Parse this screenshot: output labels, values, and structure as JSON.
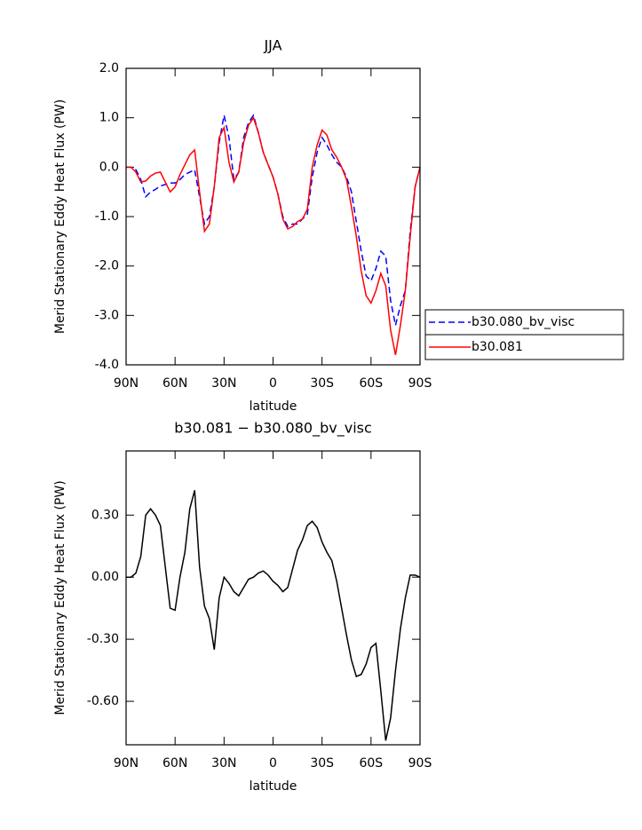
{
  "chart_data": [
    {
      "type": "line",
      "title": "JJA",
      "x_label": "latitude",
      "y_label": "Merid Stationary Eddy Heat Flux (PW)",
      "x": [
        90,
        87,
        84,
        81,
        78,
        75,
        72,
        69,
        66,
        63,
        60,
        57,
        54,
        51,
        48,
        45,
        42,
        39,
        36,
        33,
        30,
        27,
        24,
        21,
        18,
        15,
        12,
        9,
        6,
        3,
        0,
        -3,
        -6,
        -9,
        -12,
        -15,
        -18,
        -21,
        -24,
        -27,
        -30,
        -33,
        -36,
        -39,
        -42,
        -45,
        -48,
        -51,
        -54,
        -57,
        -60,
        -63,
        -66,
        -69,
        -72,
        -75,
        -78,
        -81,
        -84,
        -87,
        -90
      ],
      "series": [
        {
          "name": "b30.080_bv_visc",
          "color": "#0000ff",
          "line_style": "dashed",
          "values": [
            0,
            0,
            -0.05,
            -0.25,
            -0.6,
            -0.5,
            -0.45,
            -0.38,
            -0.35,
            -0.32,
            -0.32,
            -0.25,
            -0.15,
            -0.1,
            -0.05,
            -0.6,
            -1.15,
            -1.0,
            -0.4,
            0.5,
            1.05,
            0.6,
            -0.25,
            -0.1,
            0.6,
            0.9,
            1.05,
            0.7,
            0.3,
            0.05,
            -0.2,
            -0.55,
            -1.0,
            -1.2,
            -1.15,
            -1.15,
            -1.05,
            -0.95,
            -0.2,
            0.3,
            0.6,
            0.45,
            0.25,
            0.1,
            0.0,
            -0.2,
            -0.5,
            -1.1,
            -1.7,
            -2.2,
            -2.3,
            -2.05,
            -1.7,
            -1.8,
            -2.7,
            -3.2,
            -2.8,
            -2.5,
            -1.3,
            -0.4,
            0
          ]
        },
        {
          "name": "b30.081",
          "color": "#ff0000",
          "line_style": "solid",
          "values": [
            0,
            0,
            -0.1,
            -0.3,
            -0.28,
            -0.18,
            -0.12,
            -0.1,
            -0.3,
            -0.5,
            -0.4,
            -0.15,
            0.05,
            0.25,
            0.35,
            -0.5,
            -1.3,
            -1.15,
            -0.4,
            0.6,
            0.8,
            0.1,
            -0.3,
            -0.1,
            0.5,
            0.85,
            1.0,
            0.7,
            0.3,
            0.05,
            -0.2,
            -0.55,
            -1.05,
            -1.25,
            -1.2,
            -1.1,
            -1.05,
            -0.85,
            0.0,
            0.45,
            0.75,
            0.65,
            0.35,
            0.2,
            0.0,
            -0.25,
            -0.8,
            -1.4,
            -2.1,
            -2.6,
            -2.75,
            -2.5,
            -2.15,
            -2.4,
            -3.3,
            -3.8,
            -3.2,
            -2.5,
            -1.4,
            -0.4,
            0
          ]
        }
      ],
      "xlim": [
        90,
        -90
      ],
      "xticks": [
        {
          "value": 90,
          "label": "90N"
        },
        {
          "value": 60,
          "label": "60N"
        },
        {
          "value": 30,
          "label": "30N"
        },
        0,
        {
          "value": -30,
          "label": "30S"
        },
        {
          "value": -60,
          "label": "60S"
        },
        {
          "value": -90,
          "label": "90S"
        }
      ],
      "ylim": [
        -4,
        2
      ],
      "yticks": [
        {
          "value": 2,
          "label": "2.0"
        },
        {
          "value": 1,
          "label": "1.0"
        },
        {
          "value": 0,
          "label": "0.0"
        },
        {
          "value": -1,
          "label": "-1.0"
        },
        {
          "value": -2,
          "label": "-2.0"
        },
        {
          "value": -3,
          "label": "-3.0"
        },
        {
          "value": -4,
          "label": "-4.0"
        }
      ],
      "legend": "outside right"
    },
    {
      "type": "line",
      "title": "b30.081 − b30.080_bv_visc",
      "x_label": "latitude",
      "y_label": "Merid Stationary Eddy Heat Flux (PW)",
      "x": [
        90,
        87,
        84,
        81,
        78,
        75,
        72,
        69,
        66,
        63,
        60,
        57,
        54,
        51,
        48,
        45,
        42,
        39,
        36,
        33,
        30,
        27,
        24,
        21,
        18,
        15,
        12,
        9,
        6,
        3,
        0,
        -3,
        -6,
        -9,
        -12,
        -15,
        -18,
        -21,
        -24,
        -27,
        -30,
        -33,
        -36,
        -39,
        -42,
        -45,
        -48,
        -51,
        -54,
        -57,
        -60,
        -63,
        -66,
        -69,
        -72,
        -75,
        -78,
        -81,
        -84,
        -87,
        -90
      ],
      "values": [
        0,
        0,
        0.02,
        0.1,
        0.3,
        0.33,
        0.3,
        0.25,
        0.05,
        -0.15,
        -0.16,
        0.0,
        0.12,
        0.33,
        0.42,
        0.05,
        -0.14,
        -0.2,
        -0.35,
        -0.1,
        0.0,
        -0.03,
        -0.07,
        -0.09,
        -0.05,
        -0.01,
        0.0,
        0.02,
        0.03,
        0.01,
        -0.02,
        -0.04,
        -0.07,
        -0.05,
        0.04,
        0.13,
        0.18,
        0.25,
        0.27,
        0.24,
        0.17,
        0.12,
        0.08,
        -0.02,
        -0.15,
        -0.28,
        -0.4,
        -0.48,
        -0.47,
        -0.42,
        -0.34,
        -0.32,
        -0.55,
        -0.79,
        -0.68,
        -0.45,
        -0.25,
        -0.1,
        0.01,
        0.01,
        0
      ],
      "color": "#000000",
      "xlim": [
        90,
        -90
      ],
      "xticks": [
        {
          "value": 90,
          "label": "90N"
        },
        {
          "value": 60,
          "label": "60N"
        },
        {
          "value": 30,
          "label": "30N"
        },
        0,
        {
          "value": -30,
          "label": "30S"
        },
        {
          "value": -60,
          "label": "60S"
        },
        {
          "value": -90,
          "label": "90S"
        }
      ],
      "ylim": [
        -0.81,
        0.61
      ],
      "yticks": [
        {
          "value": 0.3,
          "label": "0.30"
        },
        {
          "value": 0,
          "label": "0.00"
        },
        {
          "value": -0.3,
          "label": "-0.30"
        },
        {
          "value": -0.6,
          "label": "-0.60"
        }
      ]
    }
  ]
}
